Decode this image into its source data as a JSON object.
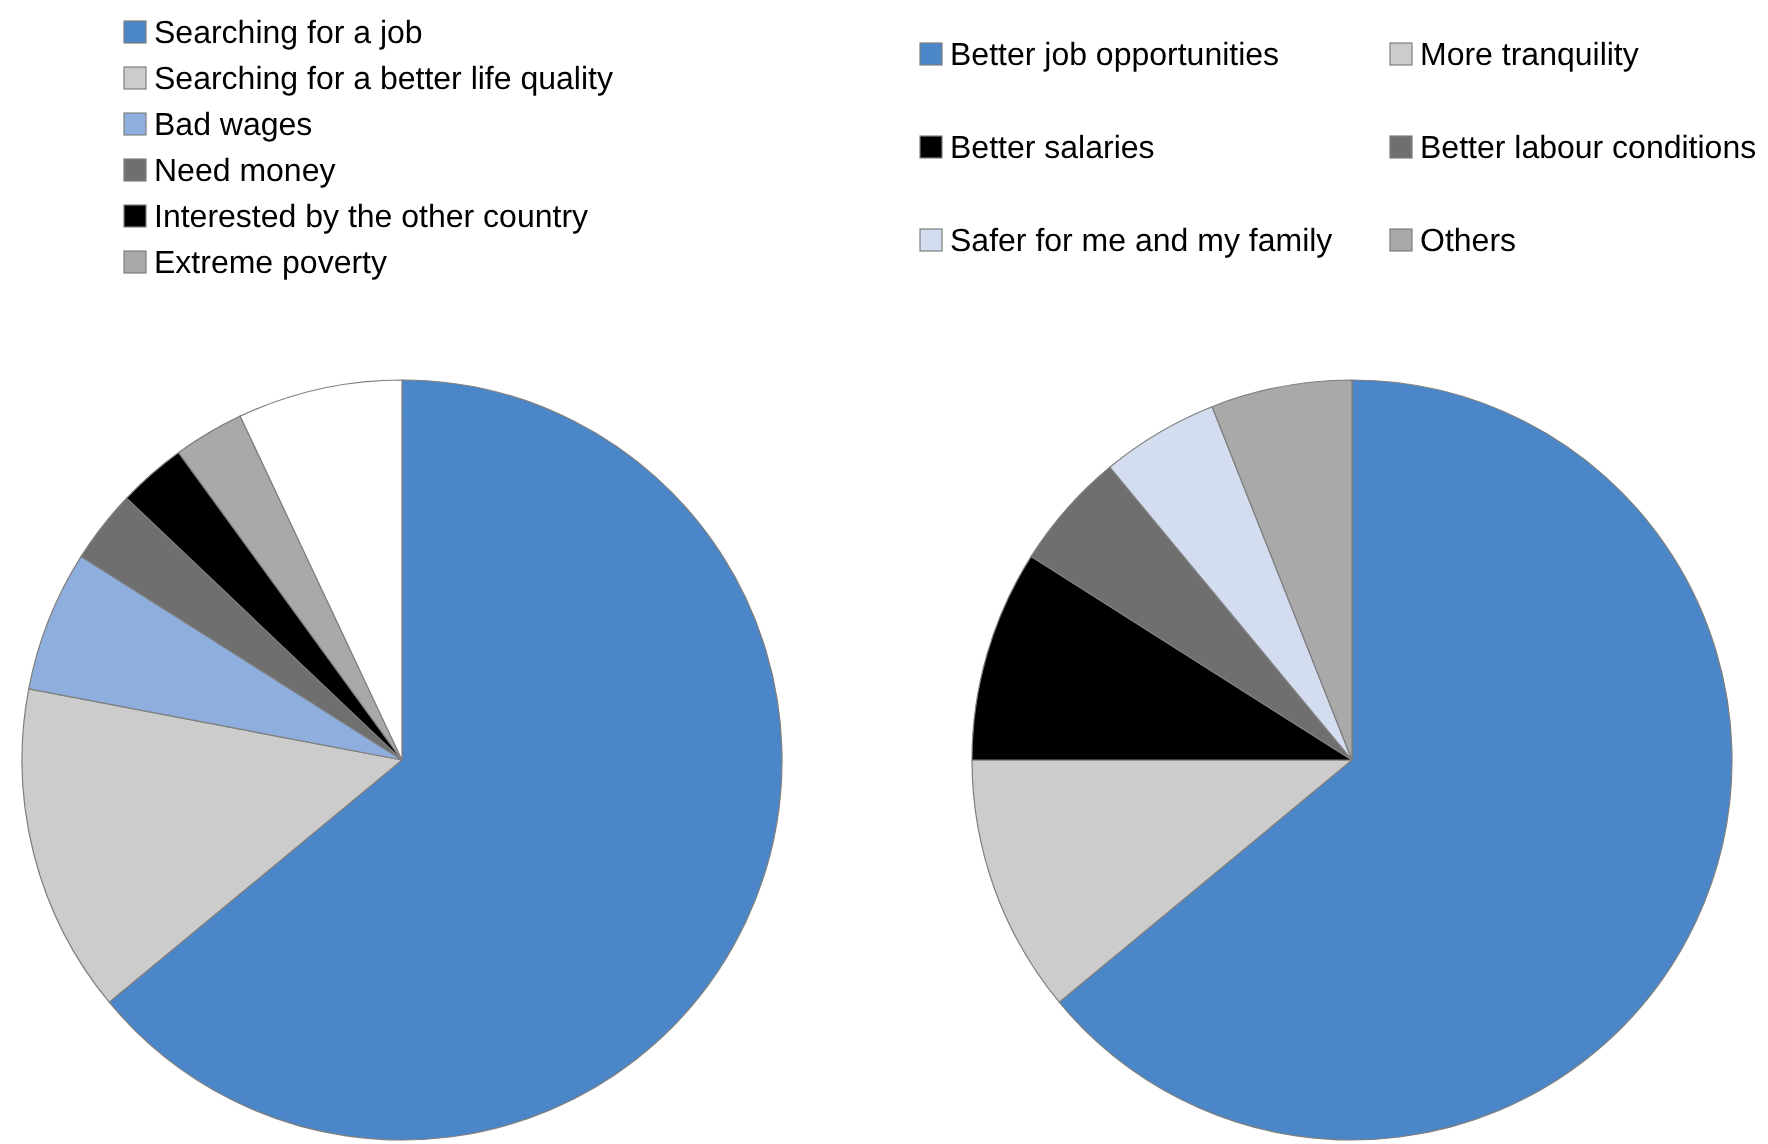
{
  "chart_data": [
    {
      "type": "pie",
      "categories": [
        "Searching for a job",
        "Searching for a better life quality",
        "Bad wages",
        "Need money",
        "Interested by the other country",
        "Extreme poverty",
        null
      ],
      "values": [
        64,
        14,
        6,
        3.1,
        2.9,
        3,
        7
      ],
      "colors": [
        "#4a86c8",
        "#cccccc",
        "#8eaedd",
        "#6f6f6f",
        "#000000",
        "#a9a9a9",
        "#ffffff"
      ],
      "legend": "top"
    },
    {
      "type": "pie",
      "categories": [
        "Better job opportunities",
        "More tranquility",
        "Better salaries",
        "Better labour conditions",
        "Safer for me and my family",
        "Others"
      ],
      "values": [
        64,
        11,
        9,
        5,
        5,
        6
      ],
      "colors": [
        "#4a86c8",
        "#cccccc",
        "#000000",
        "#6f6f6f",
        "#d3ddef",
        "#a9a9a9"
      ],
      "legend": "top"
    }
  ]
}
